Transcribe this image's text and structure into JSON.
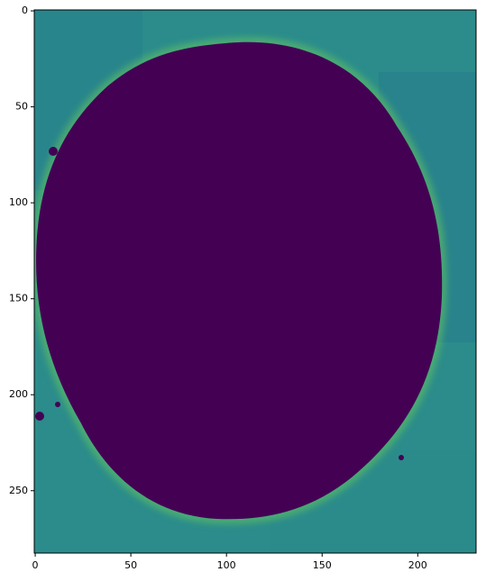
{
  "chart_data": {
    "type": "image",
    "xlim": [
      -0.5,
      230.5
    ],
    "ylim": [
      282.5,
      -0.5
    ],
    "xticks": [
      0,
      50,
      100,
      150,
      200
    ],
    "yticks": [
      0,
      50,
      100,
      150,
      200,
      250
    ],
    "grid": false
  }
}
